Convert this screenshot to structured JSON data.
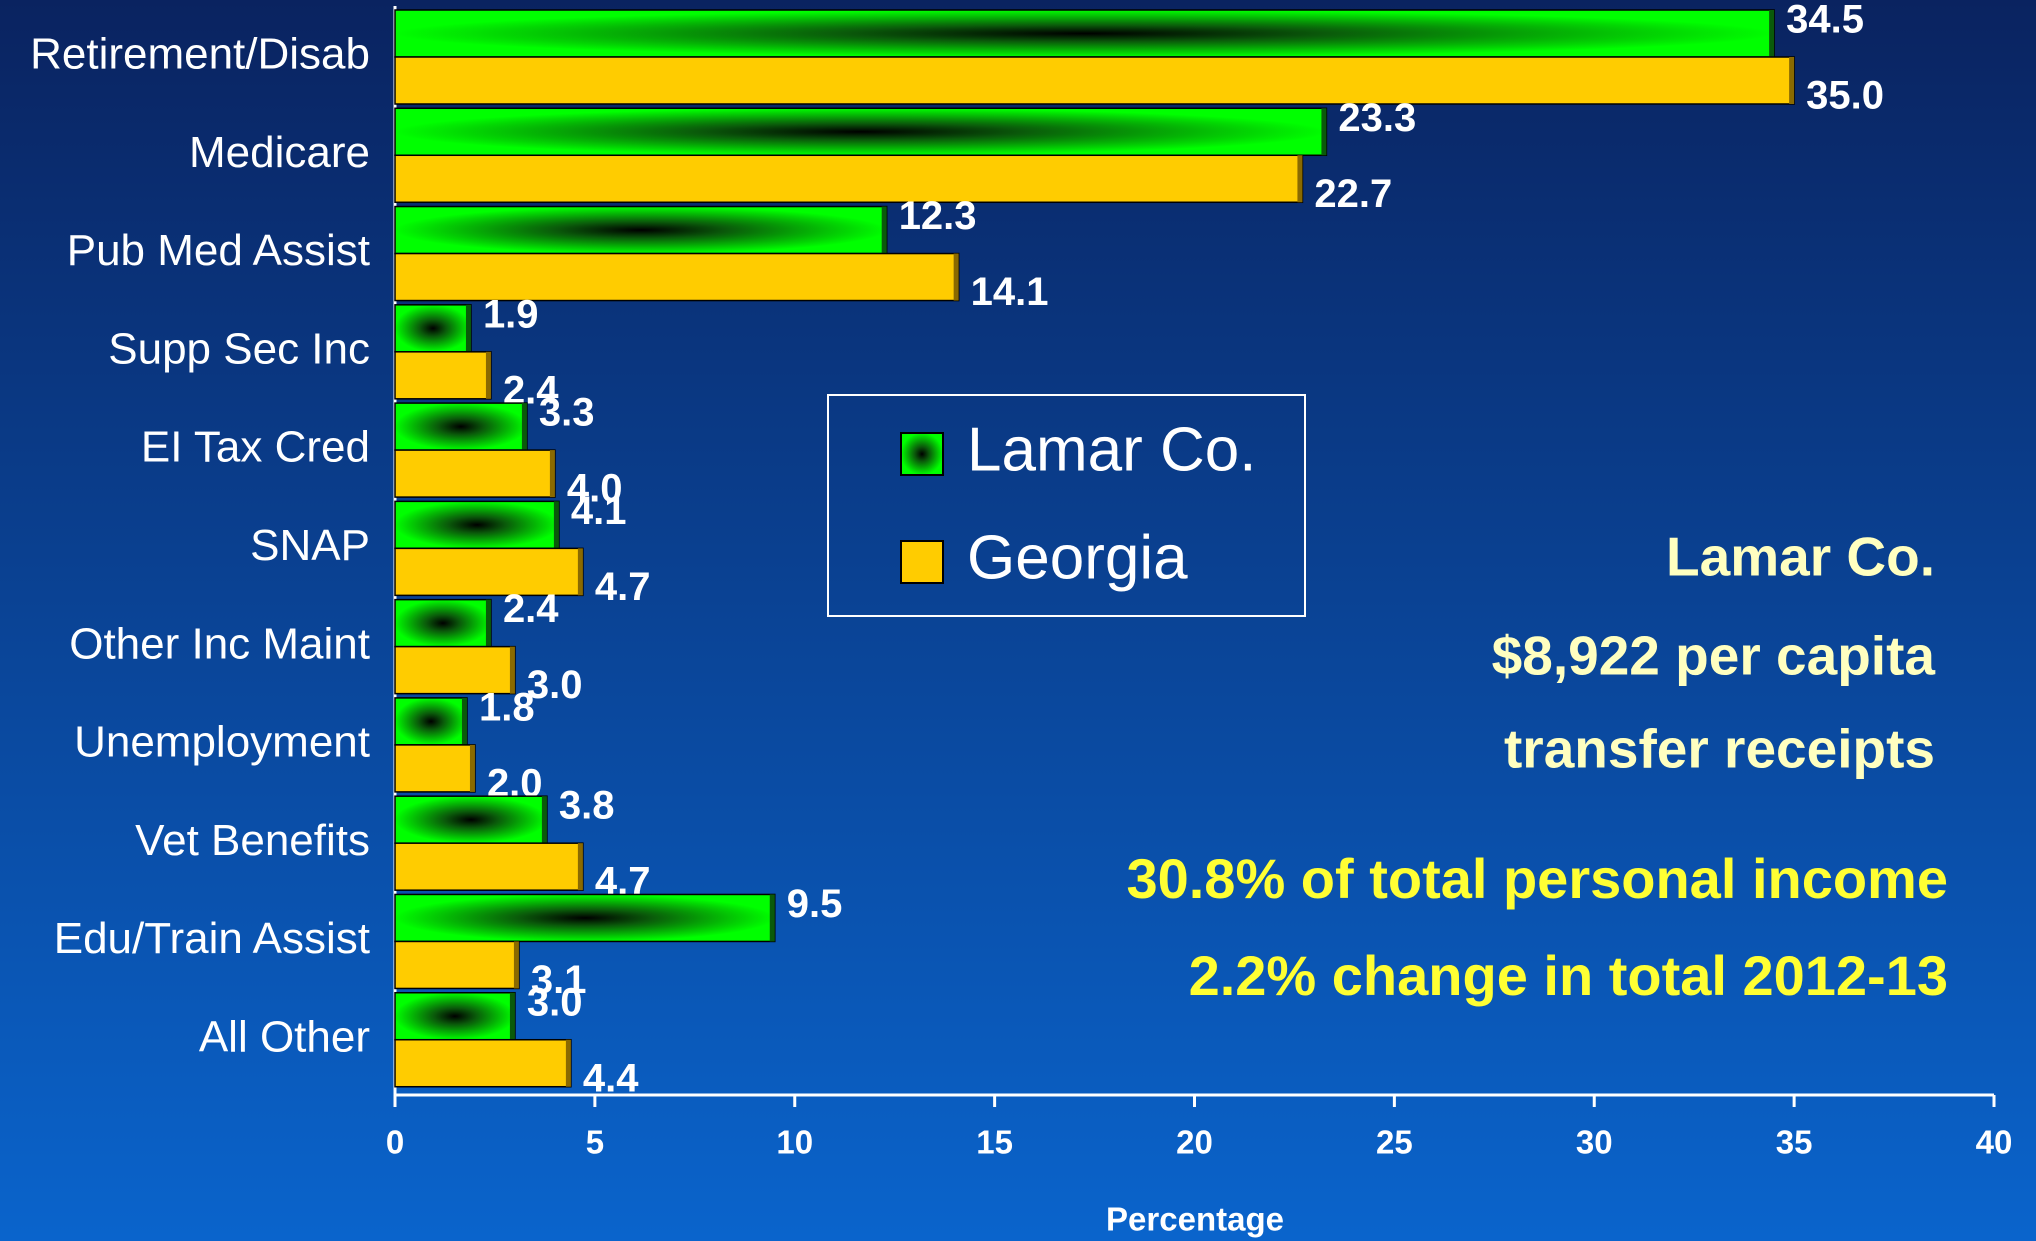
{
  "chart_data": {
    "type": "bar",
    "orientation": "horizontal",
    "categories": [
      "Retirement/Disab",
      "Medicare",
      "Pub Med Assist",
      "Supp Sec Inc",
      "EI Tax Cred",
      "SNAP",
      "Other Inc Maint",
      "Unemployment",
      "Vet Benefits",
      "Edu/Train Assist",
      "All Other"
    ],
    "series": [
      {
        "name": "Lamar Co.",
        "color": "#00ff00",
        "values": [
          34.5,
          23.3,
          12.3,
          1.9,
          3.3,
          4.1,
          2.4,
          1.8,
          3.8,
          9.5,
          3.0
        ],
        "value_labels": [
          "34.5",
          "23.3",
          "12.3",
          "1.9",
          "3.3",
          "4.1",
          "2.4",
          "1.8",
          "3.8",
          "9.5",
          "3.0"
        ]
      },
      {
        "name": "Georgia",
        "color": "#ffcc00",
        "values": [
          35.0,
          22.7,
          14.1,
          2.4,
          4.0,
          4.7,
          3.0,
          2.0,
          4.7,
          3.1,
          4.4
        ],
        "value_labels": [
          "35.0",
          "22.7",
          "14.1",
          "2.4",
          "4.0",
          "4.7",
          "3.0",
          "2.0",
          "4.7",
          "3.1",
          "4.4"
        ]
      }
    ],
    "xlabel": "Percentage",
    "xlim": [
      0,
      40
    ],
    "xticks": [
      0,
      5,
      10,
      15,
      20,
      25,
      30,
      35,
      40
    ],
    "annotations": [
      "Lamar Co.",
      "$8,922 per capita",
      "transfer receipts",
      "30.8% of total personal income",
      "2.2% change in total 2012-13"
    ]
  }
}
